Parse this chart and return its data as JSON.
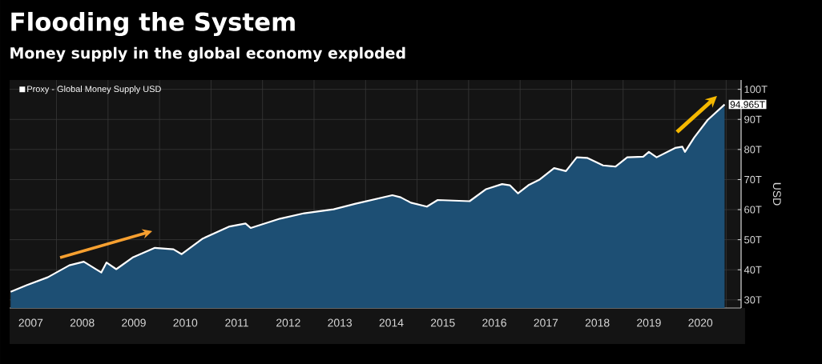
{
  "chart_data": {
    "type": "area",
    "title": "Flooding the System",
    "subtitle": "Money supply in the global economy exploded",
    "ylabel": "USD",
    "series": [
      {
        "name": "Proxy - Global Money Supply USD",
        "color": "#1d4f74",
        "x": [
          2007.11,
          2007.42,
          2007.83,
          2008.25,
          2008.53,
          2008.87,
          2008.97,
          2009.16,
          2009.49,
          2009.91,
          2010.27,
          2010.43,
          2010.84,
          2011.36,
          2011.67,
          2011.77,
          2012.34,
          2012.81,
          2013.38,
          2013.79,
          2014.52,
          2014.68,
          2014.88,
          2015.19,
          2015.4,
          2016.02,
          2016.34,
          2016.65,
          2016.8,
          2016.96,
          2017.16,
          2017.37,
          2017.66,
          2017.89,
          2018.1,
          2018.3,
          2018.61,
          2018.85,
          2019.08,
          2019.39,
          2019.5,
          2019.65,
          2020.01,
          2020.15,
          2020.2,
          2020.38,
          2020.64,
          2020.97
        ],
        "values": [
          32.7,
          34.9,
          37.5,
          41.5,
          42.7,
          39.1,
          42.4,
          40.2,
          44.2,
          47.3,
          46.8,
          45.2,
          50.4,
          54.4,
          55.4,
          53.9,
          57.0,
          58.8,
          60.1,
          61.9,
          64.8,
          64.1,
          62.3,
          61.0,
          63.2,
          62.8,
          66.8,
          68.5,
          68.1,
          65.4,
          68.1,
          69.9,
          73.8,
          72.8,
          77.4,
          77.2,
          74.7,
          74.3,
          77.4,
          77.6,
          79.2,
          77.4,
          80.5,
          80.9,
          79.2,
          84.0,
          89.8,
          94.965
        ],
        "value_labels": [
          null,
          null,
          null,
          null,
          null,
          null,
          null,
          null,
          null,
          null,
          null,
          null,
          null,
          null,
          null,
          null,
          null,
          null,
          null,
          null,
          null,
          null,
          null,
          null,
          null,
          null,
          null,
          null,
          null,
          null,
          null,
          null,
          null,
          null,
          null,
          null,
          null,
          null,
          null,
          null,
          null,
          null,
          null,
          null,
          null,
          null,
          null,
          "94.965T"
        ]
      }
    ],
    "xlim": [
      2007.09,
      2021.29
    ],
    "ylim": [
      27.3,
      103.1
    ],
    "xticks": [
      {
        "value": 2007.5,
        "label": "2007"
      },
      {
        "value": 2008.5,
        "label": "2008"
      },
      {
        "value": 2009.5,
        "label": "2009"
      },
      {
        "value": 2010.5,
        "label": "2010"
      },
      {
        "value": 2011.5,
        "label": "2011"
      },
      {
        "value": 2012.5,
        "label": "2012"
      },
      {
        "value": 2013.5,
        "label": "2013"
      },
      {
        "value": 2014.5,
        "label": "2014"
      },
      {
        "value": 2015.5,
        "label": "2015"
      },
      {
        "value": 2016.5,
        "label": "2016"
      },
      {
        "value": 2017.5,
        "label": "2017"
      },
      {
        "value": 2018.5,
        "label": "2018"
      },
      {
        "value": 2019.5,
        "label": "2019"
      },
      {
        "value": 2020.5,
        "label": "2020"
      }
    ],
    "yticks": [
      {
        "value": 30,
        "label": "30T"
      },
      {
        "value": 40,
        "label": "40T"
      },
      {
        "value": 50,
        "label": "50T"
      },
      {
        "value": 60,
        "label": "60T"
      },
      {
        "value": 70,
        "label": "70T"
      },
      {
        "value": 80,
        "label": "80T"
      },
      {
        "value": 90,
        "label": "90T"
      },
      {
        "value": 100,
        "label": "100T"
      }
    ],
    "grid": true,
    "legend": "top left",
    "marker": "none",
    "line_style": "solid"
  }
}
